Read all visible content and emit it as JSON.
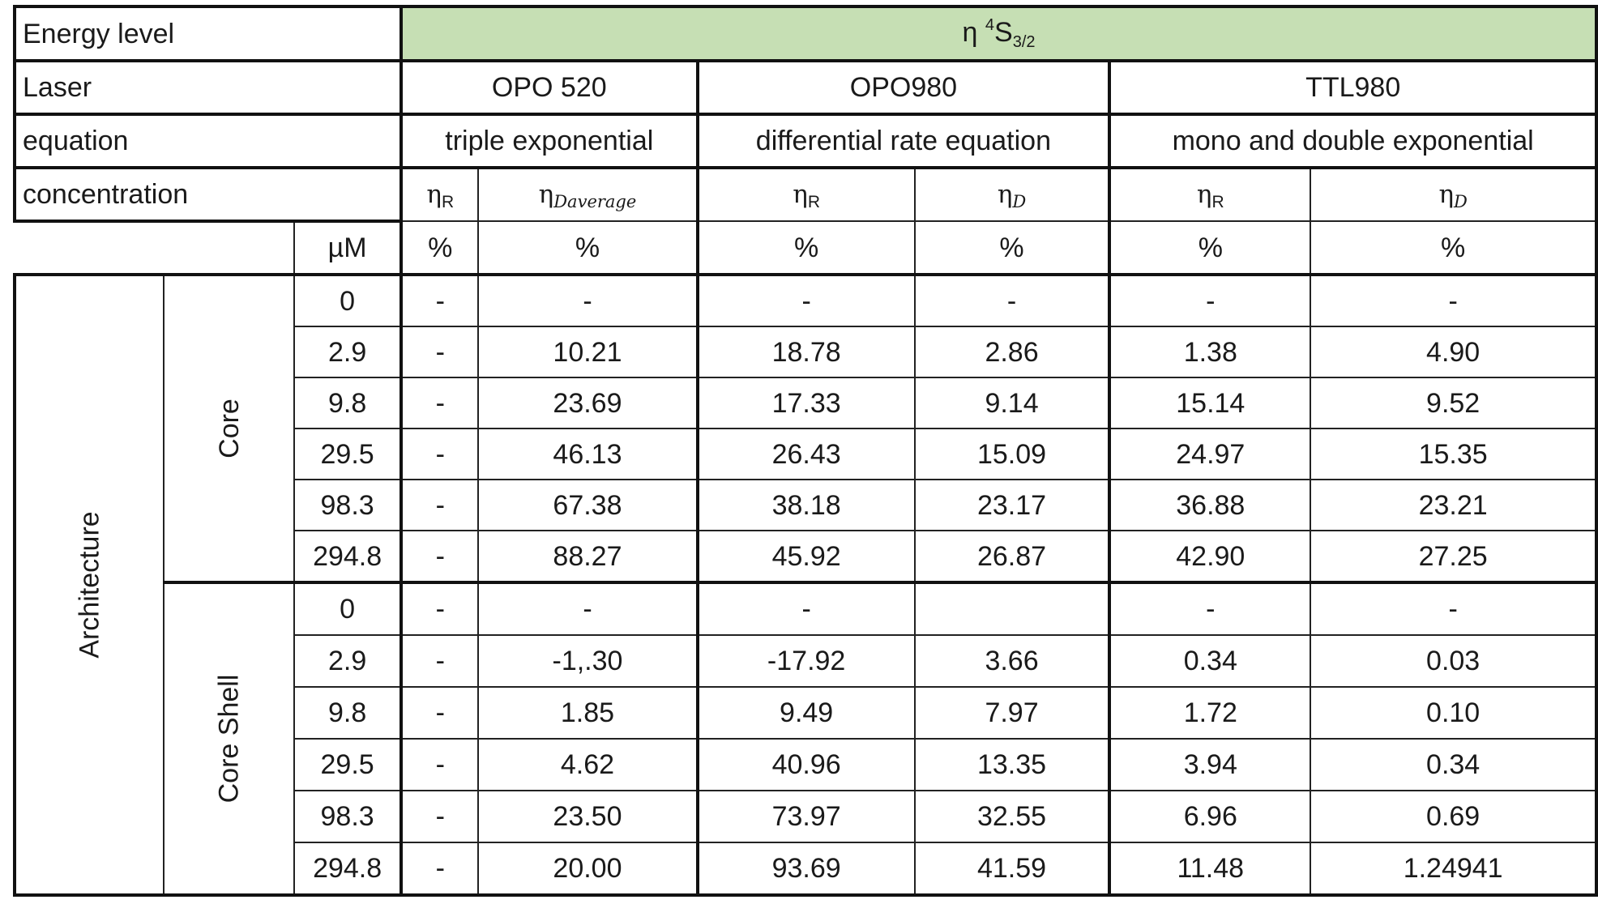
{
  "table": {
    "energy_level_label": "Energy level",
    "energy_level": {
      "eta": "η",
      "sup": "4",
      "base": "S",
      "sub": "3/2"
    },
    "laser_label": "Laser",
    "lasers": [
      "OPO 520",
      "OPO980",
      "TTL980"
    ],
    "equation_label": "equation",
    "equations": [
      "triple exponential",
      "differential rate equation",
      "mono and double exponential"
    ],
    "concentration_label": "concentration",
    "eta_symbol": "η",
    "sub_R": "R",
    "sub_Daverage": "Daverage",
    "sub_D": "D",
    "unit_conc": "µM",
    "unit_pct": "%",
    "architecture_label": "Architecture",
    "groups": [
      {
        "name": "Core",
        "rows": [
          {
            "c": "0",
            "v": [
              "-",
              "-",
              "-",
              "-",
              "-",
              "-"
            ]
          },
          {
            "c": "2.9",
            "v": [
              "-",
              "10.21",
              "18.78",
              "2.86",
              "1.38",
              "4.90"
            ]
          },
          {
            "c": "9.8",
            "v": [
              "-",
              "23.69",
              "17.33",
              "9.14",
              "15.14",
              "9.52"
            ]
          },
          {
            "c": "29.5",
            "v": [
              "-",
              "46.13",
              "26.43",
              "15.09",
              "24.97",
              "15.35"
            ]
          },
          {
            "c": "98.3",
            "v": [
              "-",
              "67.38",
              "38.18",
              "23.17",
              "36.88",
              "23.21"
            ]
          },
          {
            "c": "294.8",
            "v": [
              "-",
              "88.27",
              "45.92",
              "26.87",
              "42.90",
              "27.25"
            ]
          }
        ]
      },
      {
        "name": "Core Shell",
        "rows": [
          {
            "c": "0",
            "v": [
              "-",
              "-",
              "-",
              "",
              "-",
              "-"
            ]
          },
          {
            "c": "2.9",
            "v": [
              "-",
              "-1,.30",
              "-17.92",
              "3.66",
              "0.34",
              "0.03"
            ]
          },
          {
            "c": "9.8",
            "v": [
              "-",
              "1.85",
              "9.49",
              "7.97",
              "1.72",
              "0.10"
            ]
          },
          {
            "c": "29.5",
            "v": [
              "-",
              "4.62",
              "40.96",
              "13.35",
              "3.94",
              "0.34"
            ]
          },
          {
            "c": "98.3",
            "v": [
              "-",
              "23.50",
              "73.97",
              "32.55",
              "6.96",
              "0.69"
            ]
          },
          {
            "c": "294.8",
            "v": [
              "-",
              "20.00",
              "93.69",
              "41.59",
              "11.48",
              "1.24941"
            ]
          }
        ]
      }
    ]
  }
}
